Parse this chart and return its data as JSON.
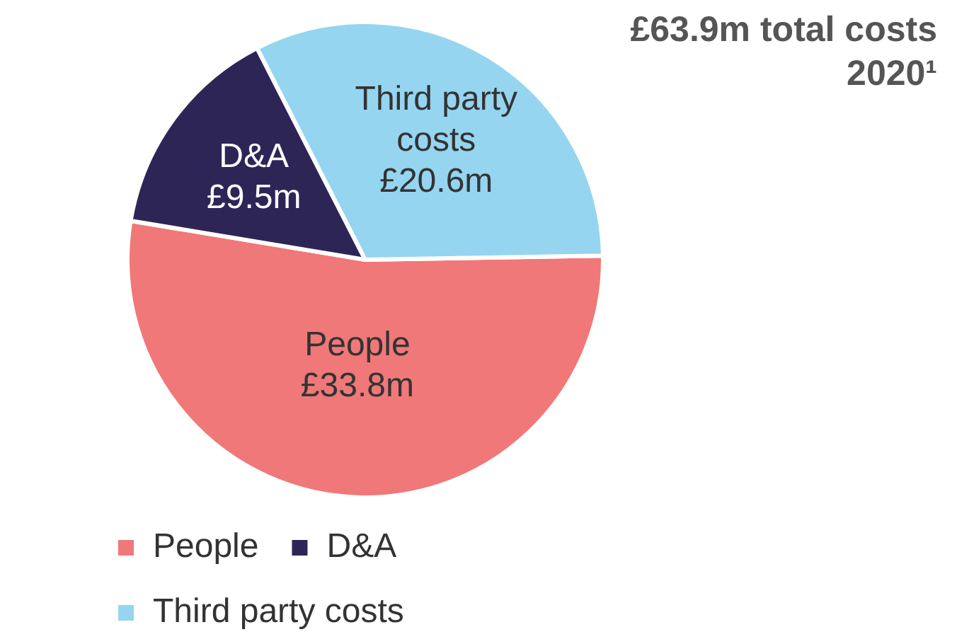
{
  "chart_data": {
    "type": "pie",
    "title": "£63.9m total costs 2020¹",
    "categories": [
      "People",
      "D&A",
      "Third party costs"
    ],
    "values": [
      33.8,
      9.5,
      20.6
    ],
    "value_labels": [
      "£33.8m",
      "£9.5m",
      "£20.6m"
    ],
    "colors": [
      "#f07878",
      "#2e2557",
      "#95d5f0"
    ],
    "legend": "bottom"
  }
}
